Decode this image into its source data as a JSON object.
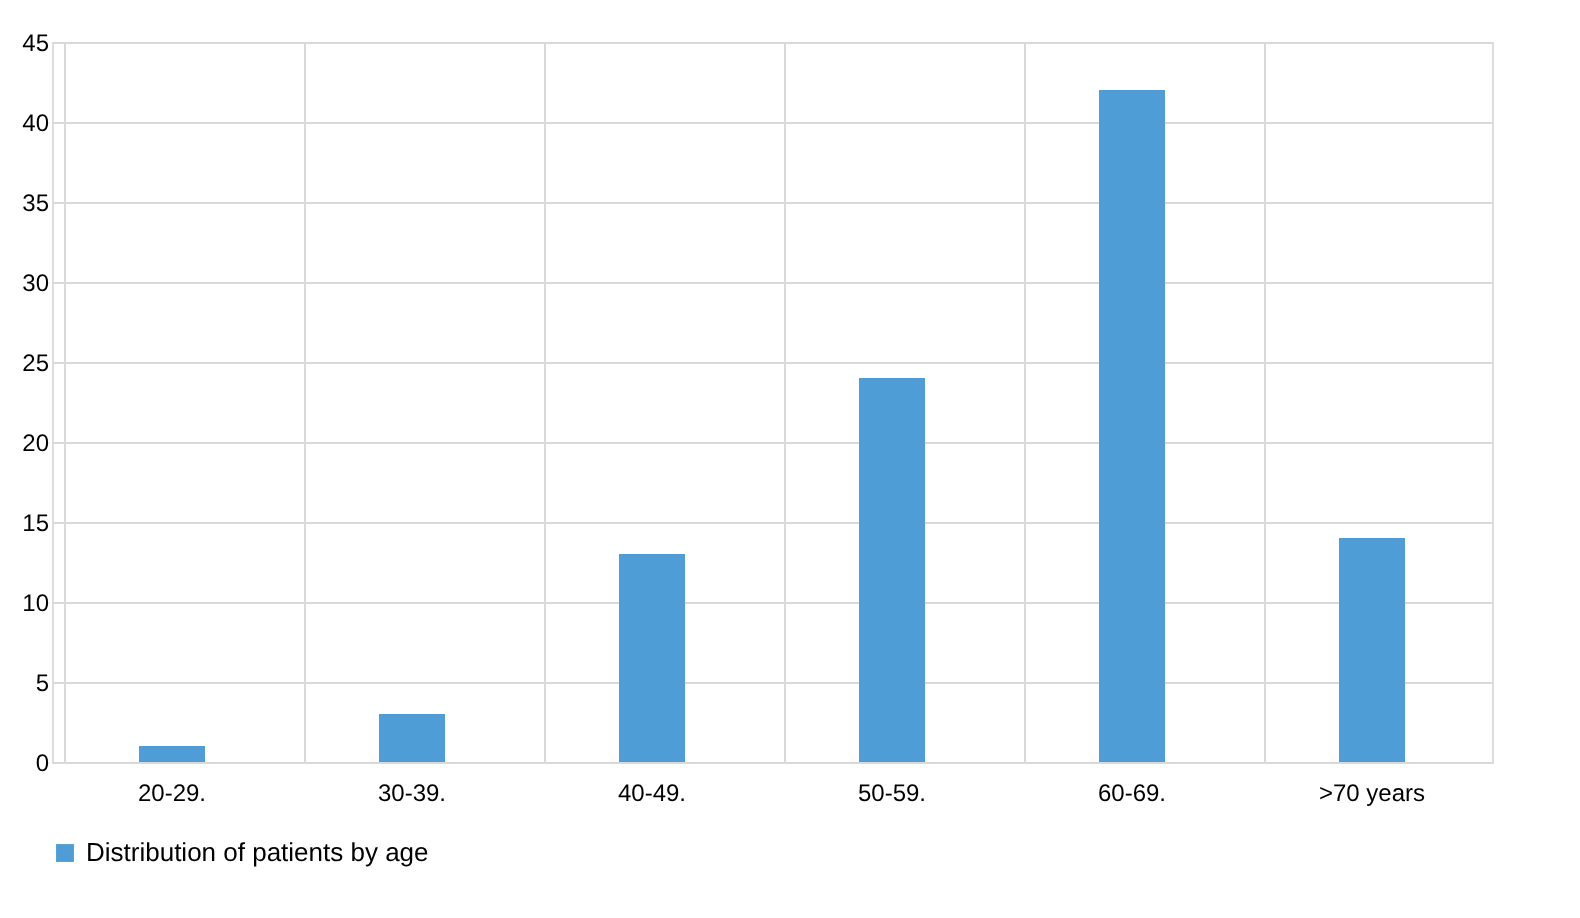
{
  "chart_data": {
    "type": "bar",
    "categories": [
      "20-29.",
      "30-39.",
      "40-49.",
      "50-59.",
      "60-69.",
      ">70 years"
    ],
    "series": [
      {
        "name": "Distribution of patients by age",
        "color": "#4f9dd6",
        "values": [
          1,
          3,
          13,
          24,
          42,
          14
        ]
      }
    ],
    "ylim": [
      0,
      45
    ],
    "yticks": [
      0,
      5,
      10,
      15,
      20,
      25,
      30,
      35,
      40,
      45
    ],
    "grid": true,
    "legend": "bottom"
  }
}
